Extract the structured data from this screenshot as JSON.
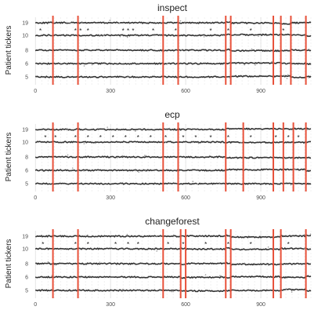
{
  "chart_data": [
    {
      "type": "line",
      "title": "inspect",
      "ylabel": "Patient tickers",
      "xlim": [
        -10,
        1100
      ],
      "x_ticks": [
        0,
        300,
        600,
        900
      ],
      "y_ticks": [
        "19",
        "10",
        "8",
        "6",
        "5"
      ],
      "grid": true,
      "changepoints": [
        70,
        170,
        510,
        570,
        760,
        780,
        950,
        980,
        1020,
        1080
      ],
      "stars": [
        [
          20,
          "10"
        ],
        [
          160,
          "10"
        ],
        [
          180,
          "10"
        ],
        [
          210,
          "10"
        ],
        [
          350,
          "10"
        ],
        [
          370,
          "10"
        ],
        [
          390,
          "10"
        ],
        [
          470,
          "10"
        ],
        [
          560,
          "10"
        ],
        [
          700,
          "10"
        ],
        [
          770,
          "10"
        ],
        [
          860,
          "10"
        ],
        [
          990,
          "10"
        ]
      ]
    },
    {
      "type": "line",
      "title": "ecp",
      "ylabel": "Patient tickers",
      "xlim": [
        -10,
        1100
      ],
      "x_ticks": [
        0,
        300,
        600,
        900
      ],
      "y_ticks": [
        "19",
        "10",
        "8",
        "6",
        "5"
      ],
      "grid": true,
      "changepoints": [
        70,
        170,
        510,
        570,
        760,
        830,
        950,
        990,
        1030,
        1080
      ],
      "stars": [
        [
          40,
          "10"
        ],
        [
          80,
          "10"
        ],
        [
          160,
          "10"
        ],
        [
          210,
          "10"
        ],
        [
          260,
          "10"
        ],
        [
          310,
          "10"
        ],
        [
          360,
          "10"
        ],
        [
          410,
          "10"
        ],
        [
          460,
          "10"
        ],
        [
          520,
          "10"
        ],
        [
          590,
          "10"
        ],
        [
          640,
          "10"
        ],
        [
          700,
          "10"
        ],
        [
          770,
          "10"
        ],
        [
          860,
          "10"
        ],
        [
          960,
          "10"
        ],
        [
          1010,
          "10"
        ],
        [
          1050,
          "10"
        ]
      ]
    },
    {
      "type": "line",
      "title": "changeforest",
      "ylabel": "Patient tickers",
      "xlim": [
        -10,
        1100
      ],
      "x_ticks": [
        0,
        300,
        600,
        900
      ],
      "y_ticks": [
        "19",
        "10",
        "8",
        "6",
        "5"
      ],
      "grid": true,
      "changepoints": [
        70,
        170,
        510,
        580,
        600,
        760,
        780,
        950,
        980,
        1080
      ],
      "stars": [
        [
          30,
          "10"
        ],
        [
          160,
          "10"
        ],
        [
          210,
          "10"
        ],
        [
          320,
          "10"
        ],
        [
          370,
          "10"
        ],
        [
          410,
          "10"
        ],
        [
          530,
          "10"
        ],
        [
          590,
          "10"
        ],
        [
          680,
          "10"
        ],
        [
          770,
          "10"
        ],
        [
          860,
          "10"
        ],
        [
          1010,
          "10"
        ]
      ]
    }
  ]
}
